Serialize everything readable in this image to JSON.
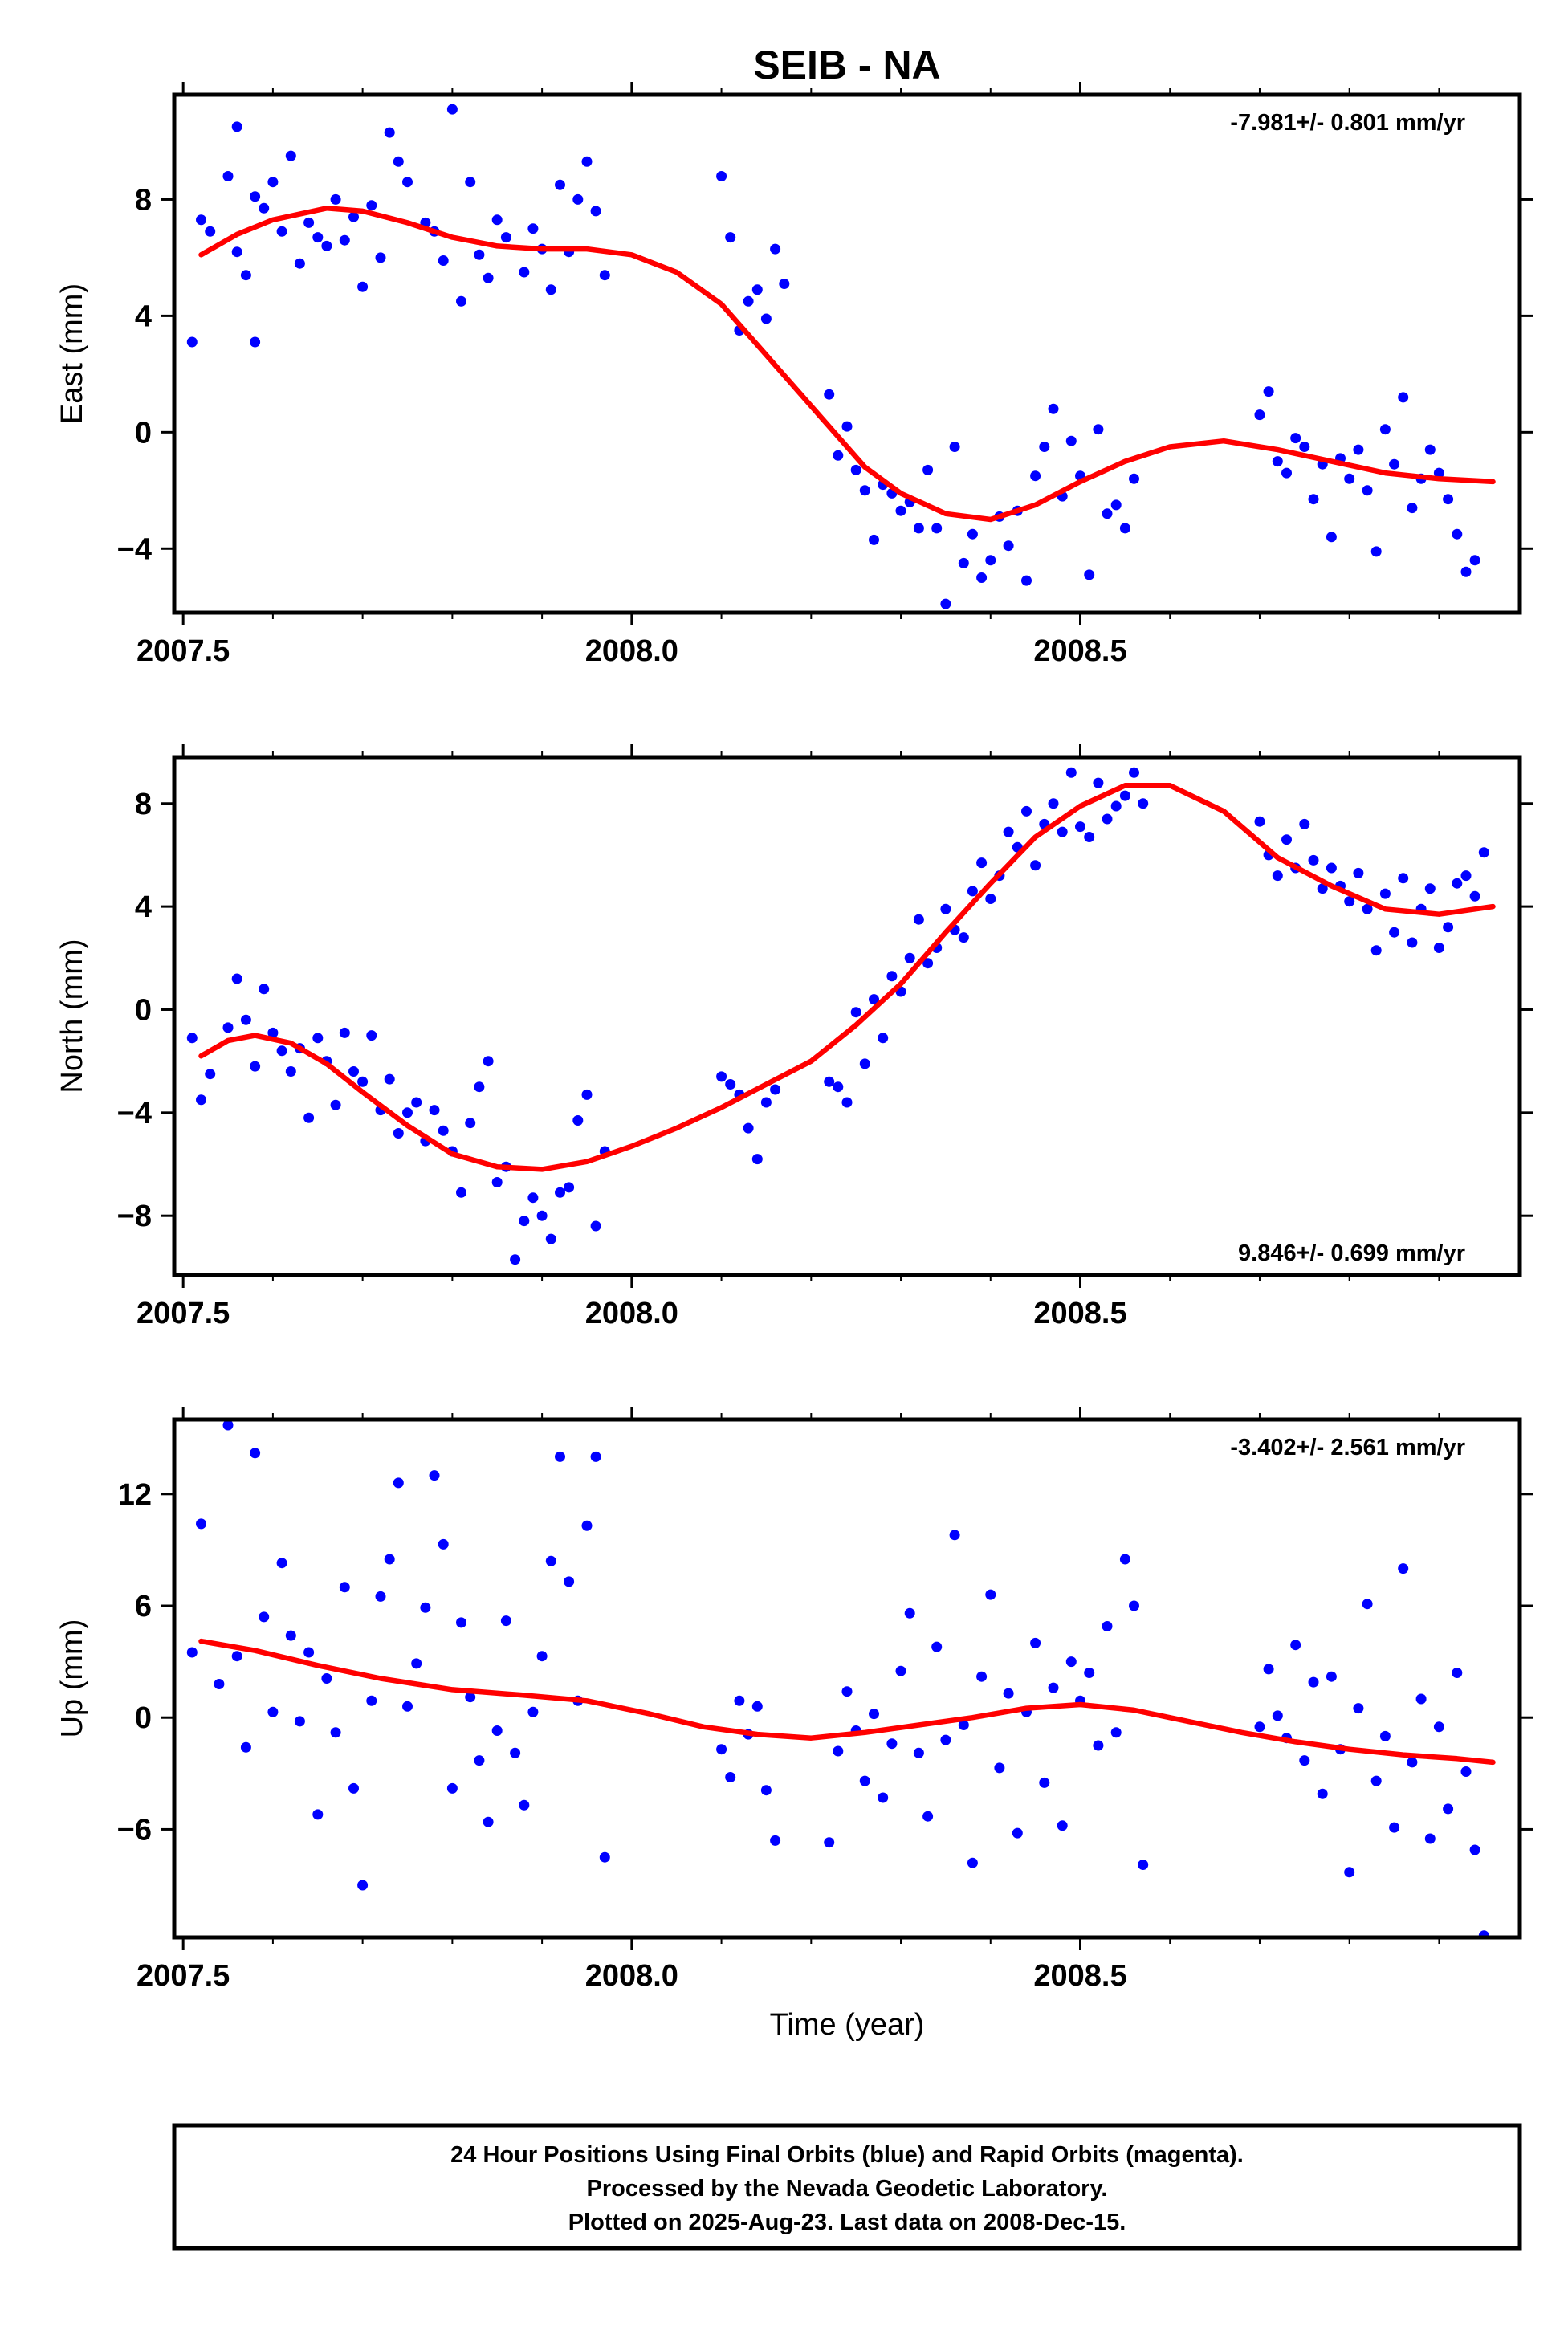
{
  "figure": {
    "title": "SEIB - NA",
    "xlabel": "Time (year)",
    "footer": [
      "24 Hour Positions Using Final Orbits (blue) and Rapid Orbits (magenta).",
      "Processed by the Nevada Geodetic Laboratory.",
      "Plotted on 2025-Aug-23. Last data on 2008-Dec-15."
    ],
    "colors": {
      "final_orbits": "#0000ff",
      "fit": "#ff0000",
      "axes": "#000000"
    }
  },
  "chart_data": [
    {
      "type": "scatter",
      "ylabel": "East (mm)",
      "rate": "-7.981+/- 0.801 mm/yr",
      "rate_position": "top-right",
      "xlim": [
        2007.49,
        2008.99
      ],
      "ylim": [
        -6.2,
        11.6
      ],
      "xticks": [
        2007.5,
        2008.0,
        2008.5
      ],
      "xtick_labels": [
        "2007.5",
        "2008.0",
        "2008.5"
      ],
      "yticks": [
        -4,
        0,
        4,
        8
      ],
      "ytick_labels": [
        "−4",
        "0",
        "4",
        "8"
      ],
      "fit": {
        "x": [
          2007.52,
          2007.56,
          2007.6,
          2007.66,
          2007.7,
          2007.75,
          2007.8,
          2007.85,
          2007.9,
          2007.95,
          2008.0,
          2008.05,
          2008.1,
          2008.14,
          2008.18,
          2008.22,
          2008.26,
          2008.3,
          2008.35,
          2008.4,
          2008.45,
          2008.5,
          2008.55,
          2008.6,
          2008.66,
          2008.72,
          2008.78,
          2008.84,
          2008.9,
          2008.96
        ],
        "y": [
          6.1,
          6.8,
          7.3,
          7.7,
          7.6,
          7.2,
          6.7,
          6.4,
          6.3,
          6.3,
          6.1,
          5.5,
          4.4,
          3.0,
          1.6,
          0.2,
          -1.2,
          -2.1,
          -2.8,
          -3.0,
          -2.5,
          -1.7,
          -1.0,
          -0.5,
          -0.3,
          -0.6,
          -1.0,
          -1.4,
          -1.6,
          -1.7
        ]
      },
      "points": {
        "x": [
          2007.51,
          2007.52,
          2007.53,
          2007.55,
          2007.56,
          2007.56,
          2007.57,
          2007.58,
          2007.58,
          2007.59,
          2007.6,
          2007.61,
          2007.62,
          2007.63,
          2007.64,
          2007.65,
          2007.66,
          2007.67,
          2007.68,
          2007.69,
          2007.7,
          2007.71,
          2007.72,
          2007.73,
          2007.74,
          2007.75,
          2007.77,
          2007.78,
          2007.79,
          2007.8,
          2007.81,
          2007.82,
          2007.83,
          2007.84,
          2007.85,
          2007.86,
          2007.88,
          2007.89,
          2007.9,
          2007.91,
          2007.92,
          2007.93,
          2007.94,
          2007.95,
          2007.96,
          2007.97,
          2008.1,
          2008.11,
          2008.12,
          2008.13,
          2008.14,
          2008.15,
          2008.16,
          2008.17,
          2008.22,
          2008.23,
          2008.24,
          2008.25,
          2008.26,
          2008.27,
          2008.28,
          2008.29,
          2008.3,
          2008.31,
          2008.32,
          2008.33,
          2008.34,
          2008.35,
          2008.36,
          2008.37,
          2008.38,
          2008.39,
          2008.4,
          2008.41,
          2008.42,
          2008.43,
          2008.44,
          2008.45,
          2008.46,
          2008.47,
          2008.48,
          2008.49,
          2008.5,
          2008.51,
          2008.52,
          2008.53,
          2008.54,
          2008.55,
          2008.56,
          2008.7,
          2008.71,
          2008.72,
          2008.73,
          2008.74,
          2008.75,
          2008.76,
          2008.77,
          2008.78,
          2008.79,
          2008.8,
          2008.81,
          2008.82,
          2008.83,
          2008.84,
          2008.85,
          2008.86,
          2008.87,
          2008.88,
          2008.89,
          2008.9,
          2008.91,
          2008.92,
          2008.93,
          2008.94
        ],
        "y": [
          3.1,
          7.3,
          6.9,
          8.8,
          10.5,
          6.2,
          5.4,
          8.1,
          3.1,
          7.7,
          8.6,
          6.9,
          9.5,
          5.8,
          7.2,
          6.7,
          6.4,
          8.0,
          6.6,
          7.4,
          5.0,
          7.8,
          6.0,
          10.3,
          9.3,
          8.6,
          7.2,
          6.9,
          5.9,
          11.1,
          4.5,
          8.6,
          6.1,
          5.3,
          7.3,
          6.7,
          5.5,
          7.0,
          6.3,
          4.9,
          8.5,
          6.2,
          8.0,
          9.3,
          7.6,
          5.4,
          8.8,
          6.7,
          3.5,
          4.5,
          4.9,
          3.9,
          6.3,
          5.1,
          1.3,
          -0.8,
          0.2,
          -1.3,
          -2.0,
          -3.7,
          -1.8,
          -2.1,
          -2.7,
          -2.4,
          -3.3,
          -1.3,
          -3.3,
          -5.9,
          -0.5,
          -4.5,
          -3.5,
          -5.0,
          -4.4,
          -2.9,
          -3.9,
          -2.7,
          -5.1,
          -1.5,
          -0.5,
          0.8,
          -2.2,
          -0.3,
          -1.5,
          -4.9,
          0.1,
          -2.8,
          -2.5,
          -3.3,
          -1.6,
          0.6,
          1.4,
          -1.0,
          -1.4,
          -0.2,
          -0.5,
          -2.3,
          -1.1,
          -3.6,
          -0.9,
          -1.6,
          -0.6,
          -2.0,
          -4.1,
          0.1,
          -1.1,
          1.2,
          -2.6,
          -1.6,
          -0.6,
          -1.4,
          -2.3,
          -3.5,
          -4.8,
          -4.4
        ]
      }
    },
    {
      "type": "scatter",
      "ylabel": "North (mm)",
      "rate": "9.846+/- 0.699 mm/yr",
      "rate_position": "bottom-right",
      "xlim": [
        2007.49,
        2008.99
      ],
      "ylim": [
        -10.3,
        9.8
      ],
      "xticks": [
        2007.5,
        2008.0,
        2008.5
      ],
      "xtick_labels": [
        "2007.5",
        "2008.0",
        "2008.5"
      ],
      "yticks": [
        -8,
        -4,
        0,
        4,
        8
      ],
      "ytick_labels": [
        "−8",
        "−4",
        "0",
        "4",
        "8"
      ],
      "fit": {
        "x": [
          2007.52,
          2007.55,
          2007.58,
          2007.62,
          2007.66,
          2007.7,
          2007.75,
          2007.8,
          2007.85,
          2007.9,
          2007.95,
          2008.0,
          2008.05,
          2008.1,
          2008.15,
          2008.2,
          2008.25,
          2008.3,
          2008.35,
          2008.4,
          2008.45,
          2008.5,
          2008.55,
          2008.6,
          2008.66,
          2008.72,
          2008.78,
          2008.84,
          2008.9,
          2008.96
        ],
        "y": [
          -1.8,
          -1.2,
          -1.0,
          -1.3,
          -2.1,
          -3.2,
          -4.5,
          -5.6,
          -6.1,
          -6.2,
          -5.9,
          -5.3,
          -4.6,
          -3.8,
          -2.9,
          -2.0,
          -0.6,
          1.0,
          3.0,
          4.9,
          6.7,
          7.9,
          8.7,
          8.7,
          7.7,
          5.9,
          4.8,
          3.9,
          3.7,
          4.0
        ]
      },
      "points": {
        "x": [
          2007.51,
          2007.52,
          2007.53,
          2007.55,
          2007.56,
          2007.57,
          2007.58,
          2007.59,
          2007.6,
          2007.61,
          2007.62,
          2007.63,
          2007.64,
          2007.65,
          2007.66,
          2007.67,
          2007.68,
          2007.69,
          2007.7,
          2007.71,
          2007.72,
          2007.73,
          2007.74,
          2007.75,
          2007.76,
          2007.77,
          2007.78,
          2007.79,
          2007.8,
          2007.81,
          2007.82,
          2007.83,
          2007.84,
          2007.85,
          2007.86,
          2007.87,
          2007.88,
          2007.89,
          2007.9,
          2007.91,
          2007.92,
          2007.93,
          2007.94,
          2007.95,
          2007.96,
          2007.97,
          2008.1,
          2008.11,
          2008.12,
          2008.13,
          2008.14,
          2008.15,
          2008.16,
          2008.22,
          2008.23,
          2008.24,
          2008.25,
          2008.26,
          2008.27,
          2008.28,
          2008.29,
          2008.3,
          2008.31,
          2008.32,
          2008.33,
          2008.34,
          2008.35,
          2008.36,
          2008.37,
          2008.38,
          2008.39,
          2008.4,
          2008.41,
          2008.42,
          2008.43,
          2008.44,
          2008.45,
          2008.46,
          2008.47,
          2008.48,
          2008.49,
          2008.5,
          2008.51,
          2008.52,
          2008.53,
          2008.54,
          2008.55,
          2008.56,
          2008.57,
          2008.7,
          2008.71,
          2008.72,
          2008.73,
          2008.74,
          2008.75,
          2008.76,
          2008.77,
          2008.78,
          2008.79,
          2008.8,
          2008.81,
          2008.82,
          2008.83,
          2008.84,
          2008.85,
          2008.86,
          2008.87,
          2008.88,
          2008.89,
          2008.9,
          2008.91,
          2008.92,
          2008.93,
          2008.94,
          2008.95
        ],
        "y": [
          -1.1,
          -3.5,
          -2.5,
          -0.7,
          1.2,
          -0.4,
          -2.2,
          0.8,
          -0.9,
          -1.6,
          -2.4,
          -1.5,
          -4.2,
          -1.1,
          -2.0,
          -3.7,
          -0.9,
          -2.4,
          -2.8,
          -1.0,
          -3.9,
          -2.7,
          -4.8,
          -4.0,
          -3.6,
          -5.1,
          -3.9,
          -4.7,
          -5.5,
          -7.1,
          -4.4,
          -3.0,
          -2.0,
          -6.7,
          -6.1,
          -9.7,
          -8.2,
          -7.3,
          -8.0,
          -8.9,
          -7.1,
          -6.9,
          -4.3,
          -3.3,
          -8.4,
          -5.5,
          -2.6,
          -2.9,
          -3.3,
          -4.6,
          -5.8,
          -3.6,
          -3.1,
          -2.8,
          -3.0,
          -3.6,
          -0.1,
          -2.1,
          0.4,
          -1.1,
          1.3,
          0.7,
          2.0,
          3.5,
          1.8,
          2.4,
          3.9,
          3.1,
          2.8,
          4.6,
          5.7,
          4.3,
          5.2,
          6.9,
          6.3,
          7.7,
          5.6,
          7.2,
          8.0,
          6.9,
          9.2,
          7.1,
          6.7,
          8.8,
          7.4,
          7.9,
          8.3,
          9.2,
          8.0,
          7.3,
          6.0,
          5.2,
          6.6,
          5.5,
          7.2,
          5.8,
          4.7,
          5.5,
          4.8,
          4.2,
          5.3,
          3.9,
          2.3,
          4.5,
          3.0,
          5.1,
          2.6,
          3.9,
          4.7,
          2.4,
          3.2,
          4.9,
          5.2,
          4.4,
          6.1
        ]
      }
    },
    {
      "type": "scatter",
      "ylabel": "Up (mm)",
      "rate": "-3.402+/- 2.561 mm/yr",
      "rate_position": "top-right",
      "xlim": [
        2007.49,
        2008.99
      ],
      "ylim": [
        -11.8,
        16.0
      ],
      "xticks": [
        2007.5,
        2008.0,
        2008.5
      ],
      "xtick_labels": [
        "2007.5",
        "2008.0",
        "2008.5"
      ],
      "yticks": [
        -6,
        0,
        6,
        12
      ],
      "ytick_labels": [
        "−6",
        "0",
        "6",
        "12"
      ],
      "fit": {
        "x": [
          2007.52,
          2007.58,
          2007.65,
          2007.72,
          2007.8,
          2007.88,
          2007.95,
          2008.02,
          2008.08,
          2008.14,
          2008.2,
          2008.26,
          2008.32,
          2008.38,
          2008.44,
          2008.5,
          2008.56,
          2008.62,
          2008.68,
          2008.74,
          2008.8,
          2008.86,
          2008.92,
          2008.96
        ],
        "y": [
          4.1,
          3.6,
          2.8,
          2.1,
          1.5,
          1.2,
          0.9,
          0.2,
          -0.5,
          -0.9,
          -1.1,
          -0.8,
          -0.4,
          0.0,
          0.5,
          0.7,
          0.4,
          -0.2,
          -0.8,
          -1.3,
          -1.7,
          -2.0,
          -2.2,
          -2.4
        ]
      },
      "points": {
        "x": [
          2007.51,
          2007.52,
          2007.54,
          2007.55,
          2007.56,
          2007.57,
          2007.58,
          2007.59,
          2007.6,
          2007.61,
          2007.62,
          2007.63,
          2007.64,
          2007.65,
          2007.66,
          2007.67,
          2007.68,
          2007.69,
          2007.7,
          2007.71,
          2007.72,
          2007.73,
          2007.74,
          2007.75,
          2007.76,
          2007.77,
          2007.78,
          2007.79,
          2007.8,
          2007.81,
          2007.82,
          2007.83,
          2007.84,
          2007.85,
          2007.86,
          2007.87,
          2007.88,
          2007.89,
          2007.9,
          2007.91,
          2007.92,
          2007.93,
          2007.94,
          2007.95,
          2007.96,
          2007.97,
          2008.1,
          2008.11,
          2008.12,
          2008.13,
          2008.14,
          2008.15,
          2008.16,
          2008.22,
          2008.23,
          2008.24,
          2008.25,
          2008.26,
          2008.27,
          2008.28,
          2008.29,
          2008.3,
          2008.31,
          2008.32,
          2008.33,
          2008.34,
          2008.35,
          2008.36,
          2008.37,
          2008.38,
          2008.39,
          2008.4,
          2008.41,
          2008.42,
          2008.43,
          2008.44,
          2008.45,
          2008.46,
          2008.47,
          2008.48,
          2008.49,
          2008.5,
          2008.51,
          2008.52,
          2008.53,
          2008.54,
          2008.55,
          2008.56,
          2008.57,
          2008.7,
          2008.71,
          2008.72,
          2008.73,
          2008.74,
          2008.75,
          2008.76,
          2008.77,
          2008.78,
          2008.79,
          2008.8,
          2008.81,
          2008.82,
          2008.83,
          2008.84,
          2008.85,
          2008.86,
          2008.87,
          2008.88,
          2008.89,
          2008.9,
          2008.91,
          2008.92,
          2008.93,
          2008.94,
          2008.95
        ],
        "y": [
          3.5,
          10.4,
          1.8,
          15.7,
          3.3,
          -1.6,
          14.2,
          5.4,
          0.3,
          8.3,
          4.4,
          -0.2,
          3.5,
          -5.2,
          2.1,
          -0.8,
          7.0,
          -3.8,
          -9.0,
          0.9,
          6.5,
          8.5,
          12.6,
          0.6,
          2.9,
          5.9,
          13.0,
          9.3,
          -3.8,
          5.1,
          1.1,
          -2.3,
          -5.6,
          -0.7,
          5.2,
          -1.9,
          -4.7,
          0.3,
          3.3,
          8.4,
          14.0,
          7.3,
          0.9,
          10.3,
          14.0,
          -7.5,
          -1.7,
          -3.2,
          0.9,
          -0.9,
          0.6,
          -3.9,
          -6.6,
          -6.7,
          -1.8,
          1.4,
          -0.7,
          -3.4,
          0.2,
          -4.3,
          -1.4,
          2.5,
          5.6,
          -1.9,
          -5.3,
          3.8,
          -1.2,
          9.8,
          -0.4,
          -7.8,
          2.2,
          6.6,
          -2.7,
          1.3,
          -6.2,
          0.3,
          4.0,
          -3.5,
          1.6,
          -5.8,
          3.0,
          0.9,
          2.4,
          -1.5,
          4.9,
          -0.8,
          8.5,
          6.0,
          -7.9,
          -0.5,
          2.6,
          0.1,
          -1.1,
          3.9,
          -2.3,
          1.9,
          -4.1,
          2.2,
          -1.7,
          -8.3,
          0.5,
          6.1,
          -3.4,
          -1.0,
          -5.9,
          8.0,
          -2.4,
          1.0,
          -6.5,
          -0.5,
          -4.9,
          2.4,
          -2.9,
          -7.1,
          -11.7
        ]
      }
    }
  ]
}
